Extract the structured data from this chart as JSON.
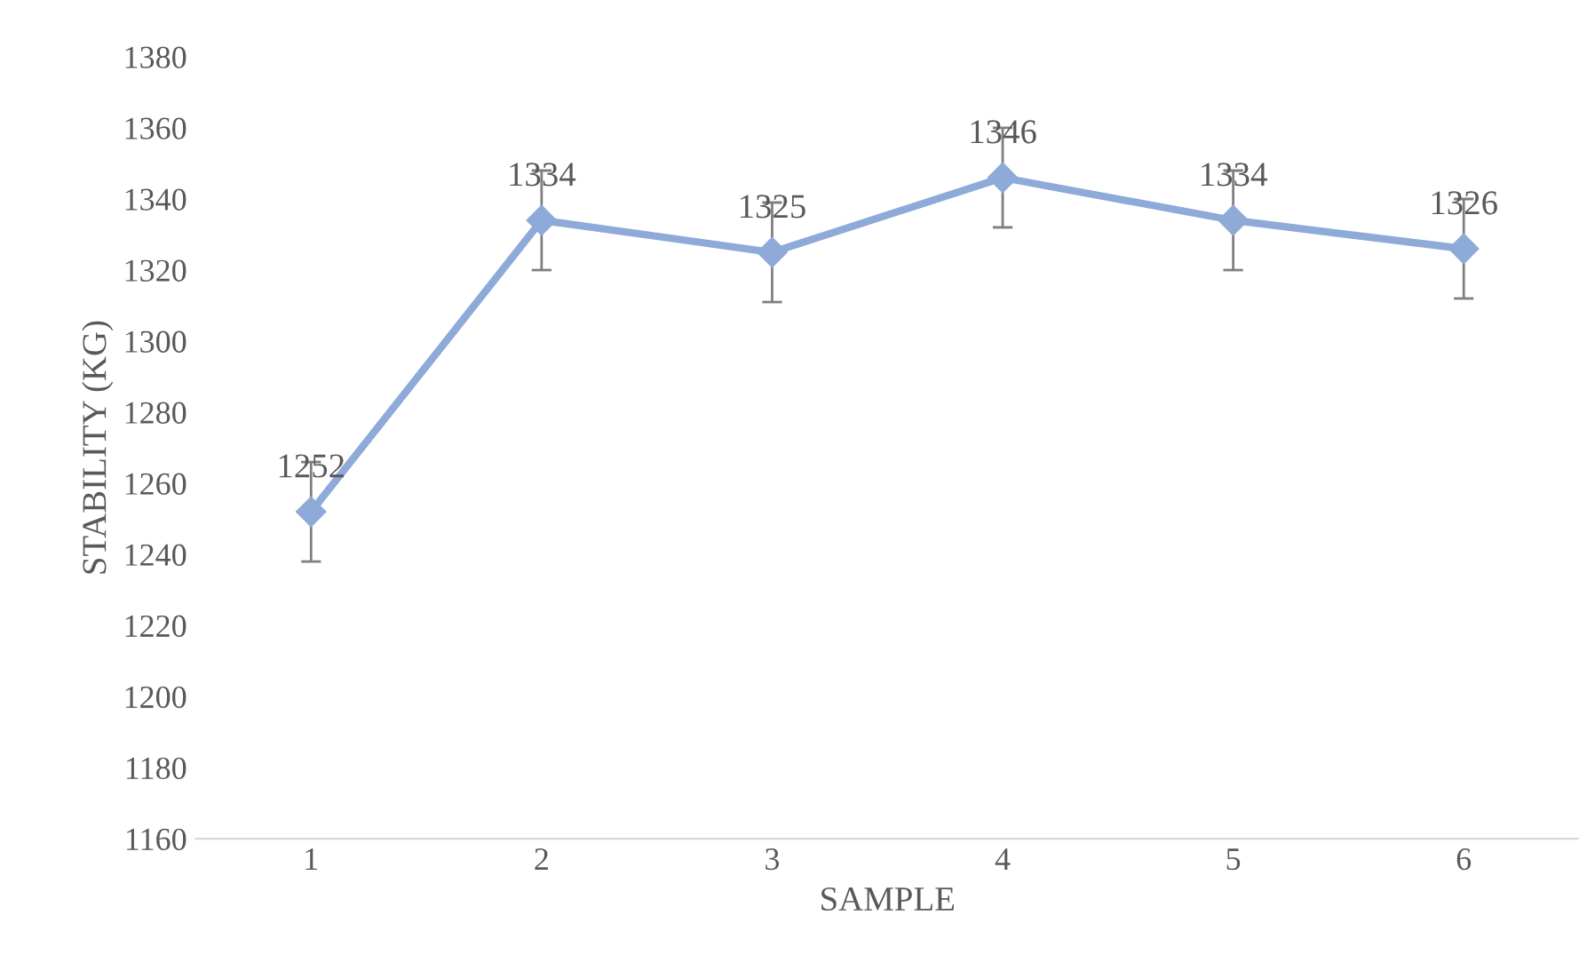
{
  "chart_data": {
    "type": "line",
    "xlabel": "SAMPLE",
    "ylabel": "STABILITY (KG)",
    "categories": [
      "1",
      "2",
      "3",
      "4",
      "5",
      "6"
    ],
    "series": [
      {
        "color": "#8eaad8",
        "values": [
          1252,
          1334,
          1325,
          1346,
          1334,
          1326
        ],
        "errors": [
          14,
          14,
          14,
          14,
          14,
          14
        ]
      }
    ],
    "ylim": [
      1160,
      1380
    ],
    "yticks": [
      1160,
      1180,
      1200,
      1220,
      1240,
      1260,
      1280,
      1300,
      1320,
      1340,
      1360,
      1380
    ],
    "data_labels": true,
    "marker": "diamond",
    "line_style": "solid",
    "grid": false,
    "legend": false
  }
}
